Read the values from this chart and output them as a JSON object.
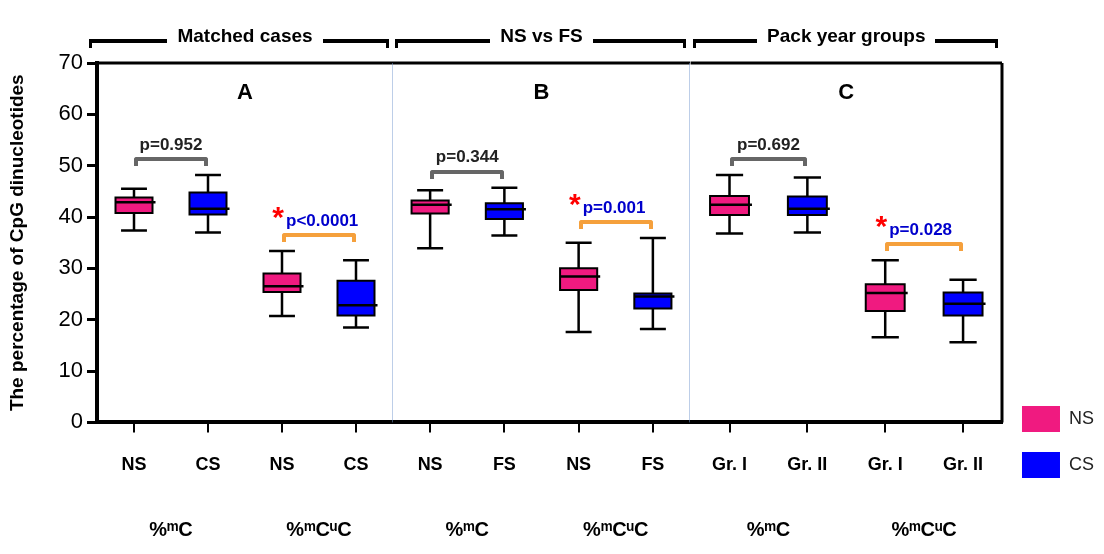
{
  "chart_data": [
    {
      "type": "box",
      "title": "Matched cases",
      "subtitle": "A",
      "ylabel": "The percentage of CpG dinucleotides",
      "categories": [
        "NS",
        "CS",
        "NS",
        "CS"
      ],
      "ylim": [
        0,
        70
      ],
      "yticks": [
        0,
        10,
        20,
        30,
        40,
        50,
        60,
        70
      ],
      "legend": false,
      "series": [
        {
          "color": "#f01a80",
          "boxes": [
            {
              "low": 37.4,
              "q1": 40.8,
              "median": 42.9,
              "q3": 43.8,
              "high": 45.5
            },
            null,
            {
              "low": 20.7,
              "q1": 25.4,
              "median": 26.5,
              "q3": 29.0,
              "high": 33.4
            },
            null
          ]
        },
        {
          "color": "#0000ff",
          "boxes": [
            null,
            {
              "low": 37.0,
              "q1": 40.5,
              "median": 41.6,
              "q3": 44.8,
              "high": 48.2
            },
            null,
            {
              "low": 18.5,
              "q1": 20.8,
              "median": 22.8,
              "q3": 27.6,
              "high": 31.6
            }
          ]
        }
      ],
      "annotations": [
        "%ᵐC",
        "%ᵐCᵘC",
        "p=0.952",
        "*",
        "p<0.0001"
      ]
    },
    {
      "type": "box",
      "title": "NS vs FS",
      "subtitle": "B",
      "categories": [
        "NS",
        "FS",
        "NS",
        "FS"
      ],
      "ylim": [
        0,
        70
      ],
      "tick_labels": "x",
      "legend": false,
      "series": [
        {
          "color": "#f01a80",
          "boxes": [
            {
              "low": 33.9,
              "q1": 40.7,
              "median": 42.4,
              "q3": 43.2,
              "high": 45.2
            },
            null,
            {
              "low": 17.6,
              "q1": 25.8,
              "median": 28.4,
              "q3": 30.0,
              "high": 35.0
            },
            null
          ]
        },
        {
          "color": "#0000ff",
          "boxes": [
            null,
            {
              "low": 36.4,
              "q1": 39.6,
              "median": 41.5,
              "q3": 42.7,
              "high": 45.7
            },
            null,
            {
              "low": 18.2,
              "q1": 22.2,
              "median": 24.5,
              "q3": 25.1,
              "high": 35.9
            }
          ]
        }
      ],
      "annotations": [
        "%ᵐC",
        "%ᵐCᵘC",
        "p=0.344",
        "*",
        "p=0.001"
      ]
    },
    {
      "type": "box",
      "title": "Pack year groups",
      "subtitle": "C",
      "categories": [
        "Gr. I",
        "Gr. II",
        "Gr. I",
        "Gr. II"
      ],
      "ylim": [
        0,
        70
      ],
      "tick_labels": "x",
      "legend": "bottom right",
      "series": [
        {
          "name": "NS",
          "color": "#f01a80",
          "boxes": [
            {
              "low": 36.8,
              "q1": 40.4,
              "median": 42.4,
              "q3": 44.1,
              "high": 48.2
            },
            null,
            {
              "low": 16.6,
              "q1": 21.7,
              "median": 25.2,
              "q3": 26.9,
              "high": 31.6
            },
            null
          ]
        },
        {
          "name": "CS",
          "color": "#0000ff",
          "boxes": [
            null,
            {
              "low": 37.0,
              "q1": 40.4,
              "median": 41.6,
              "q3": 44.0,
              "high": 47.7
            },
            null,
            {
              "low": 15.6,
              "q1": 20.8,
              "median": 23.1,
              "q3": 25.3,
              "high": 27.8
            }
          ]
        }
      ],
      "annotations": [
        "%ᵐC",
        "%ᵐCᵘC",
        "p=0.692",
        "*",
        "p=0.028"
      ]
    }
  ]
}
